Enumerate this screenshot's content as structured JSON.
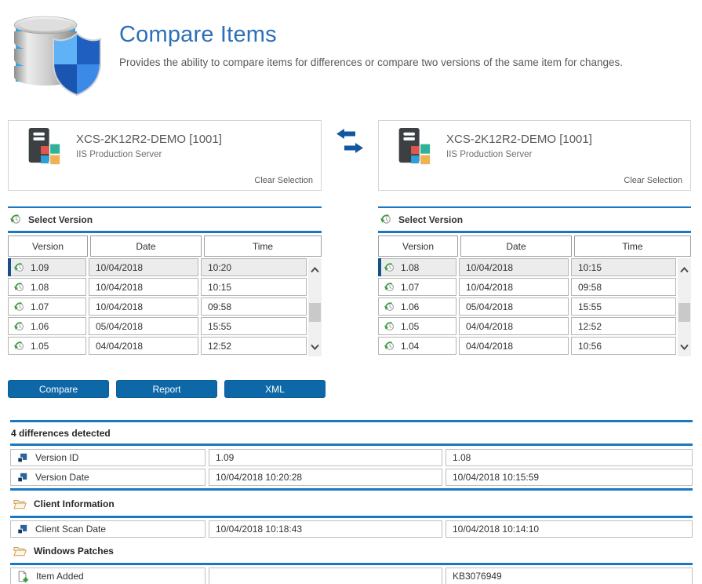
{
  "header": {
    "title": "Compare Items",
    "subtitle": "Provides the ability to compare items for differences or compare two versions of the same item for changes."
  },
  "left_item": {
    "name": "XCS-2K12R2-DEMO [1001]",
    "description": "IIS Production Server",
    "clear_label": "Clear Selection"
  },
  "right_item": {
    "name": "XCS-2K12R2-DEMO [1001]",
    "description": "IIS Production Server",
    "clear_label": "Clear Selection"
  },
  "version_section": {
    "title": "Select Version",
    "columns": [
      "Version",
      "Date",
      "Time"
    ]
  },
  "left_versions": {
    "selected_index": 0,
    "rows": [
      {
        "version": "1.09",
        "date": "10/04/2018",
        "time": "10:20"
      },
      {
        "version": "1.08",
        "date": "10/04/2018",
        "time": "10:15"
      },
      {
        "version": "1.07",
        "date": "10/04/2018",
        "time": "09:58"
      },
      {
        "version": "1.06",
        "date": "05/04/2018",
        "time": "15:55"
      },
      {
        "version": "1.05",
        "date": "04/04/2018",
        "time": "12:52"
      }
    ]
  },
  "right_versions": {
    "selected_index": 0,
    "rows": [
      {
        "version": "1.08",
        "date": "10/04/2018",
        "time": "10:15"
      },
      {
        "version": "1.07",
        "date": "10/04/2018",
        "time": "09:58"
      },
      {
        "version": "1.06",
        "date": "05/04/2018",
        "time": "15:55"
      },
      {
        "version": "1.05",
        "date": "04/04/2018",
        "time": "12:52"
      },
      {
        "version": "1.04",
        "date": "04/04/2018",
        "time": "10:56"
      }
    ]
  },
  "actions": {
    "compare": "Compare",
    "report": "Report",
    "xml": "XML"
  },
  "differences": {
    "summary": "4 differences detected",
    "groups": [
      {
        "header": "",
        "rule_above": false,
        "rows": [
          {
            "icon": "changed",
            "label": "Version ID",
            "left": "1.09",
            "right": "1.08"
          },
          {
            "icon": "changed",
            "label": "Version Date",
            "left": "10/04/2018 10:20:28",
            "right": "10/04/2018 10:15:59"
          }
        ]
      },
      {
        "header": "Client Information",
        "rule_above": true,
        "rows": [
          {
            "icon": "changed",
            "label": "Client Scan Date",
            "left": "10/04/2018 10:18:43",
            "right": "10/04/2018 10:14:10"
          }
        ]
      },
      {
        "header": "Windows Patches",
        "rule_above": false,
        "rows": [
          {
            "icon": "added",
            "label": "Item Added",
            "left": "",
            "right": "KB3076949"
          }
        ]
      }
    ]
  },
  "icons": {
    "app": "database-shield-icon",
    "item": "server-icon",
    "swap": "swap-arrows-icon",
    "version": "history-icon",
    "changed": "changed-item-icon",
    "group": "folder-icon",
    "added": "item-added-icon"
  },
  "colors": {
    "accent_blue": "#1878c4",
    "title_blue": "#2b70b8",
    "button_blue": "#0e68a8",
    "selected_bar": "#174f87",
    "text_gray": "#595959"
  }
}
